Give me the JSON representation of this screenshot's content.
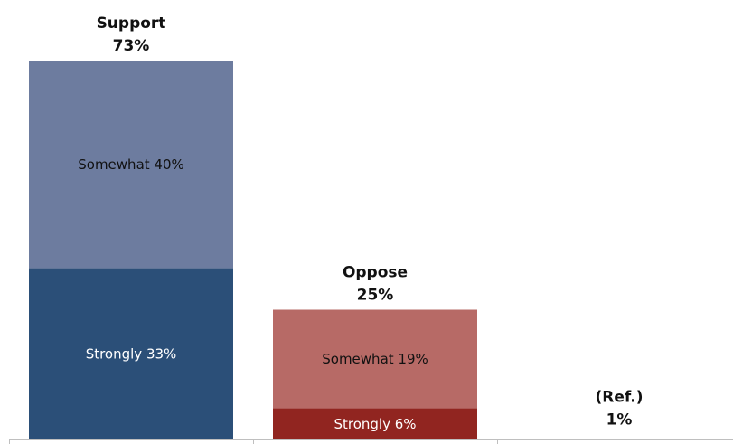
{
  "chart_data": {
    "type": "bar",
    "stacked": true,
    "grid": false,
    "legend": "none",
    "ylim": [
      0,
      75
    ],
    "categories": [
      {
        "name": "Support",
        "total_label": "73%",
        "total": 73
      },
      {
        "name": "Oppose",
        "total_label": "25%",
        "total": 25
      },
      {
        "name": "(Ref.)",
        "total_label": "1%",
        "total": 1
      }
    ],
    "segments": [
      [
        {
          "label": "Strongly 33%",
          "value": 33,
          "color": "#2b4f78",
          "text_color": "#ffffff"
        },
        {
          "label": "Somewhat 40%",
          "value": 40,
          "color": "#6d7c9f",
          "text_color": "#111111"
        }
      ],
      [
        {
          "label": "Strongly 6%",
          "value": 6,
          "color": "#912520",
          "text_color": "#ffffff"
        },
        {
          "label": "Somewhat 19%",
          "value": 19,
          "color": "#b76a66",
          "text_color": "#111111"
        }
      ],
      []
    ],
    "axis_color": "#bfbfbf"
  }
}
